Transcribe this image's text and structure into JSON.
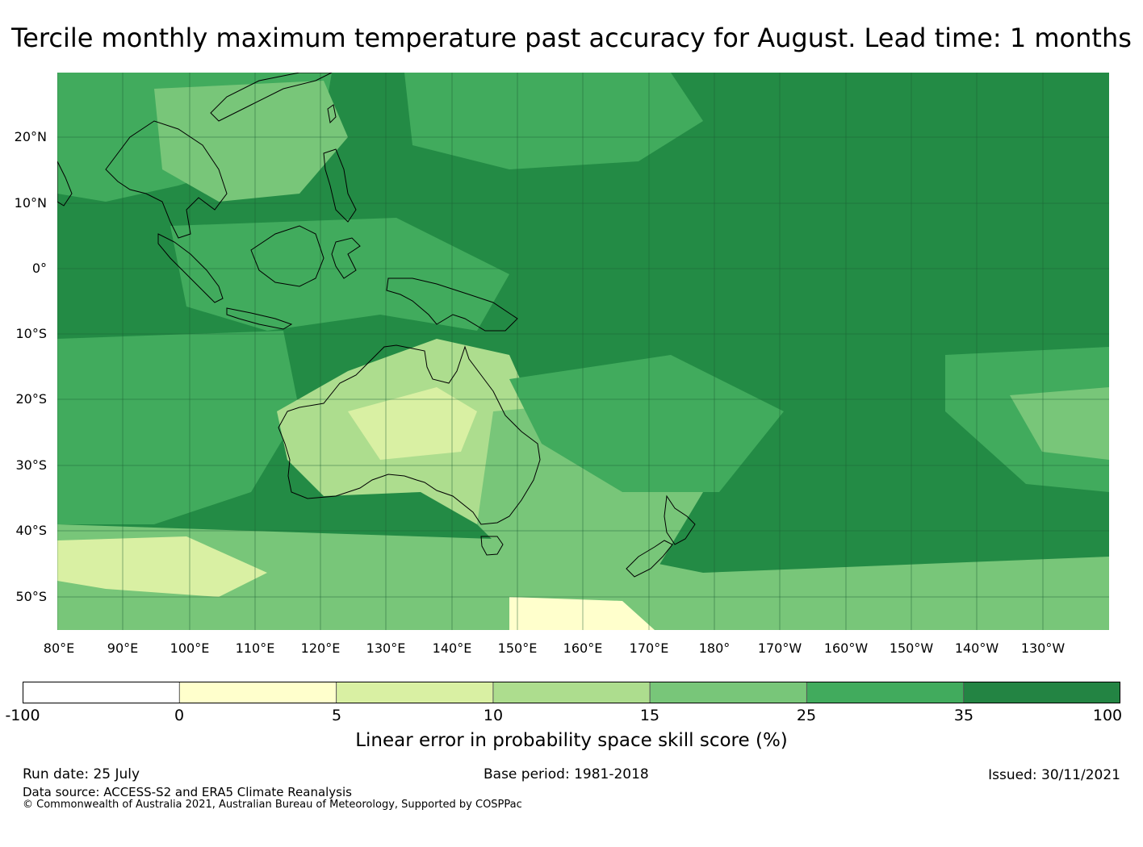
{
  "title": "Tercile monthly maximum temperature past accuracy for August. Lead time: 1 months",
  "map": {
    "lat_labels": [
      "20°N",
      "10°N",
      "0°",
      "10°S",
      "20°S",
      "30°S",
      "40°S",
      "50°S"
    ],
    "lon_labels": [
      "80°E",
      "90°E",
      "100°E",
      "110°E",
      "120°E",
      "130°E",
      "140°E",
      "150°E",
      "160°E",
      "170°E",
      "180°",
      "170°W",
      "160°W",
      "150°W",
      "140°W",
      "130°W"
    ],
    "colors": {
      "ocean_base": "#238b45",
      "gridline": "#1d5e34",
      "coastline": "#000000"
    }
  },
  "colorbar": {
    "ticks": [
      "-100",
      "0",
      "5",
      "10",
      "15",
      "25",
      "35",
      "100"
    ],
    "colors": [
      "#ffffff",
      "#ffffcc",
      "#d9f0a3",
      "#addd8e",
      "#78c679",
      "#41ab5d",
      "#238443"
    ],
    "label": "Linear error in probability space skill score (%)"
  },
  "footer": {
    "run_date": "Run date: 25 July",
    "base_period": "Base period: 1981-2018",
    "issued": "Issued: 30/11/2021",
    "data_source": "Data source: ACCESS-S2 and ERA5 Climate Reanalysis",
    "copyright": "© Commonwealth of Australia 2021, Australian Bureau of Meteorology, Supported by COSPPac"
  }
}
